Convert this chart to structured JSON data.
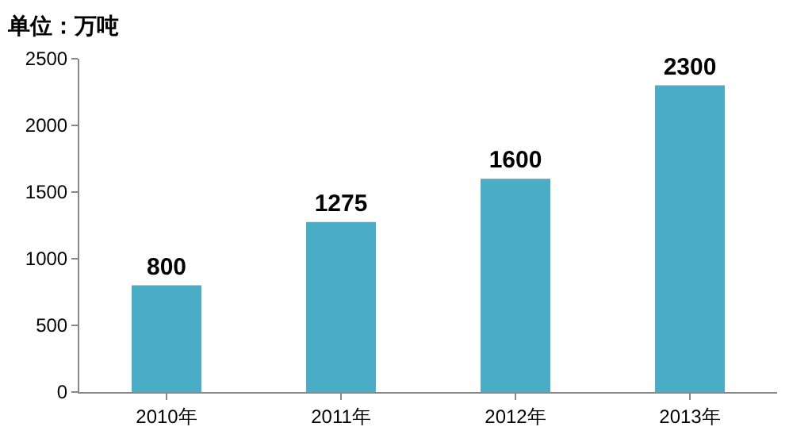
{
  "chart_data": {
    "type": "bar",
    "title": "单位：万吨",
    "categories": [
      "2010年",
      "2011年",
      "2012年",
      "2013年"
    ],
    "values": [
      800,
      1275,
      1600,
      2300
    ],
    "color": "#4bacc6",
    "ylim": [
      0,
      2500
    ],
    "yticks": [
      0,
      500,
      1000,
      1500,
      2000,
      2500
    ],
    "grid": false,
    "data_labels": true
  }
}
